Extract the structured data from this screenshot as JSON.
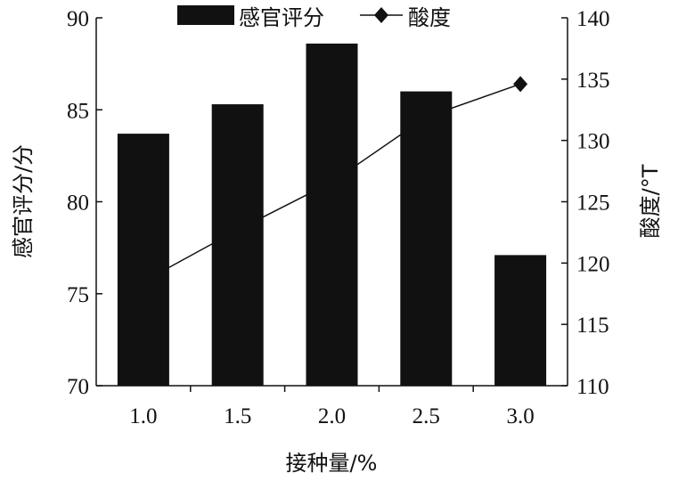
{
  "chart_data": {
    "type": "bar+line",
    "categories": [
      "1.0",
      "1.5",
      "2.0",
      "2.5",
      "3.0"
    ],
    "series": [
      {
        "name": "感官评分",
        "kind": "bar",
        "axis": "left",
        "values": [
          83.7,
          85.3,
          88.6,
          86.0,
          77.1
        ],
        "color": "#111111"
      },
      {
        "name": "酸度",
        "kind": "line",
        "axis": "right",
        "marker": "diamond",
        "values": [
          118.5,
          122.7,
          126.6,
          131.9,
          134.6
        ],
        "color": "#111111"
      }
    ],
    "xlabel": "接种量/%",
    "ylabel_left": "感官评分/分",
    "ylabel_right": "酸度/°T",
    "ylim_left": [
      70,
      90
    ],
    "yticks_left": [
      "70",
      "75",
      "80",
      "85",
      "90"
    ],
    "ylim_right": [
      110,
      140
    ],
    "yticks_right": [
      "110",
      "115",
      "120",
      "125",
      "130",
      "135",
      "140"
    ],
    "legend_position": "top-center",
    "grid": false
  }
}
